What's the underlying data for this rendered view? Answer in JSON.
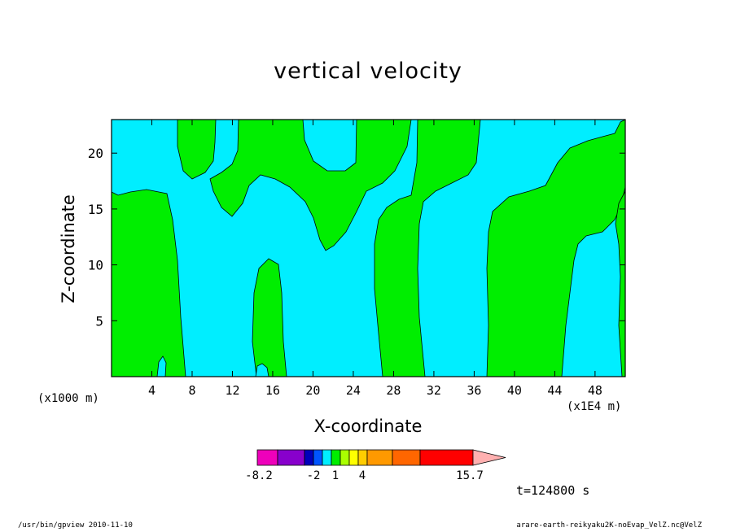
{
  "chart_data": {
    "type": "heatmap",
    "title": "vertical velocity",
    "xlabel": "X-coordinate",
    "ylabel": "Z-coordinate",
    "x_unit_left": "(x1000 m)",
    "x_unit_right": "(x1E4 m)",
    "xlim": [
      0,
      51
    ],
    "ylim": [
      0,
      23
    ],
    "xticks": [
      "4",
      "8",
      "12",
      "16",
      "20",
      "24",
      "28",
      "32",
      "36",
      "40",
      "44",
      "48"
    ],
    "yticks": [
      "5",
      "10",
      "15",
      "20"
    ],
    "field_colors": {
      "negative": "#00eeff",
      "positive": "#00ee00"
    },
    "colorbar": {
      "levels": [
        -8.2,
        -2,
        1,
        4,
        15.7
      ],
      "tick_labels": [
        "-8.2",
        "-2",
        "1",
        "4",
        "15.7"
      ],
      "colors": [
        "#ee00bb",
        "#8800cc",
        "#0000bb",
        "#0055ff",
        "#00eeff",
        "#00ee00",
        "#aaff00",
        "#ffff00",
        "#ffcc00",
        "#ff9900",
        "#ff6600",
        "#ff0000",
        "#ff8080",
        "#ffb0b0"
      ]
    },
    "time_label": "t=124800 s"
  },
  "footer": {
    "left": "/usr/bin/gpview  2010-11-10",
    "right": "arare-earth-reikyaku2K-noEvap_VelZ.nc@VelZ"
  }
}
